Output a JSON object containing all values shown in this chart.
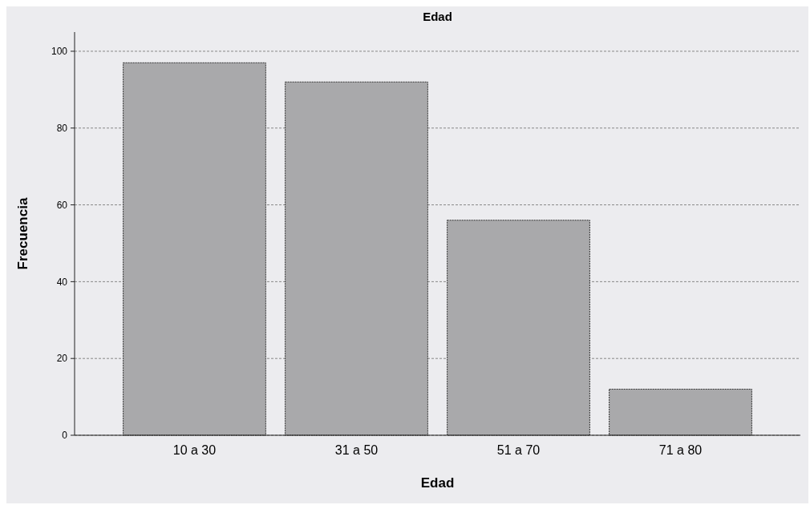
{
  "chart_data": {
    "type": "bar",
    "title": "Edad",
    "xlabel": "Edad",
    "ylabel": "Frecuencia",
    "categories": [
      "10 a 30",
      "31 a 50",
      "51 a 70",
      "71 a 80"
    ],
    "values": [
      97,
      92,
      56,
      12
    ],
    "color": "#a9a9ab",
    "ylim": [
      0,
      105
    ],
    "yticks": [
      0,
      20,
      40,
      60,
      80,
      100
    ],
    "grid": "y"
  }
}
